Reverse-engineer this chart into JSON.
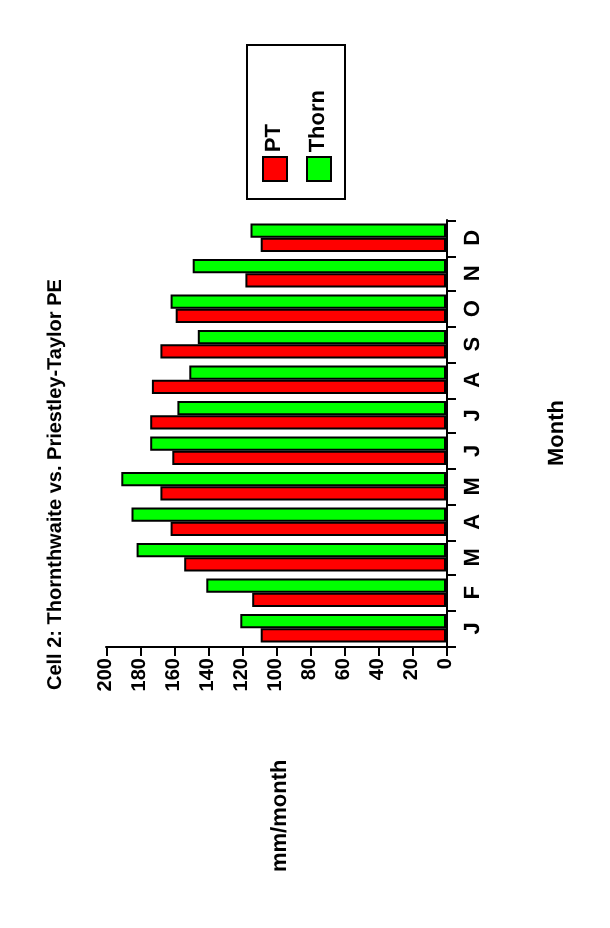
{
  "chart_data": {
    "type": "bar",
    "orientation": "horizontal",
    "title": "Cell 2: Thornthwaite vs. Priestley-Taylor PE",
    "ylabel": "Month",
    "annotations": [
      "mm/month"
    ],
    "categories": [
      "D",
      "N",
      "O",
      "S",
      "A",
      "J",
      "J",
      "M",
      "A",
      "M",
      "F",
      "J"
    ],
    "series": [
      {
        "name": "PT",
        "color": "#ff0000",
        "values": [
          109,
          118,
          159,
          168,
          173,
          174,
          161,
          168,
          162,
          154,
          114,
          109
        ]
      },
      {
        "name": "Thorn",
        "color": "#00ff00",
        "values": [
          115,
          149,
          162,
          146,
          151,
          158,
          174,
          191,
          185,
          182,
          141,
          121
        ]
      }
    ],
    "xlim": [
      200,
      0
    ],
    "xticks": [
      200,
      180,
      160,
      140,
      120,
      100,
      80,
      60,
      40,
      20,
      0
    ],
    "grid": false,
    "legend": "top right"
  }
}
